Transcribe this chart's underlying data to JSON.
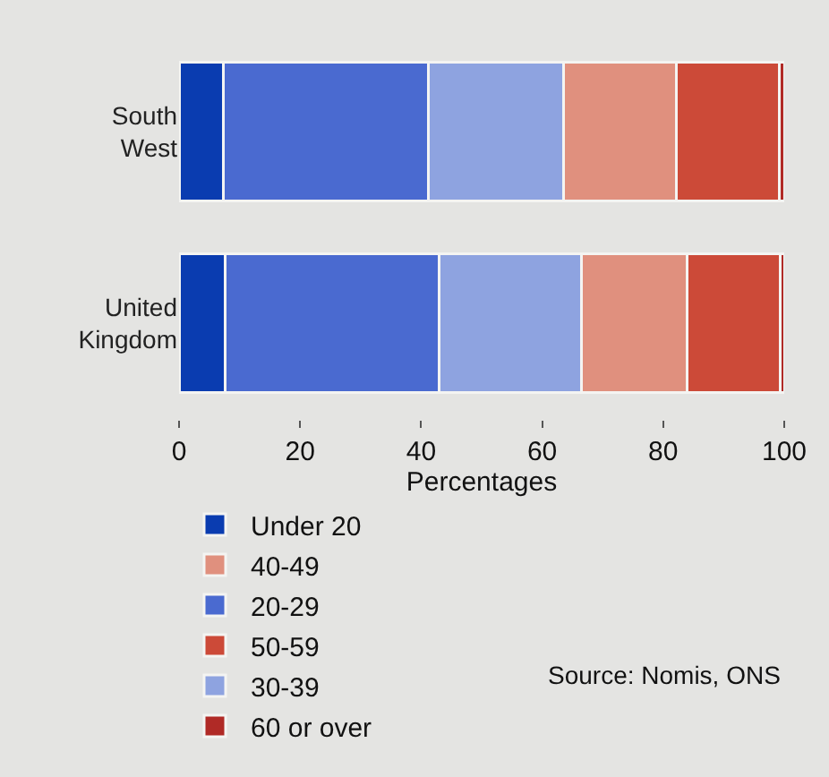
{
  "chart_data": {
    "type": "bar",
    "orientation": "horizontal",
    "stacked": true,
    "categories": [
      "South West",
      "United Kingdom"
    ],
    "series": [
      {
        "name": "Under 20",
        "color": "#0a3cb0",
        "values": [
          7.3,
          7.6
        ]
      },
      {
        "name": "20-29",
        "color": "#4a6ad0",
        "values": [
          33.9,
          35.3
        ]
      },
      {
        "name": "30-39",
        "color": "#8ea3e0",
        "values": [
          22.4,
          23.6
        ]
      },
      {
        "name": "40-49",
        "color": "#e0907e",
        "values": [
          18.5,
          17.5
        ]
      },
      {
        "name": "50-59",
        "color": "#cc4a38",
        "values": [
          17.1,
          15.3
        ]
      },
      {
        "name": "60 or over",
        "color": "#b02a26",
        "values": [
          0.8,
          0.7
        ]
      }
    ],
    "xlim": [
      0,
      100
    ],
    "xticks": [
      0,
      20,
      40,
      60,
      80,
      100
    ],
    "xlabel": "Percentages",
    "grid": false,
    "legend": "bottom",
    "annotations": [
      "$^{}$Source: Nomis, ONS"
    ]
  }
}
